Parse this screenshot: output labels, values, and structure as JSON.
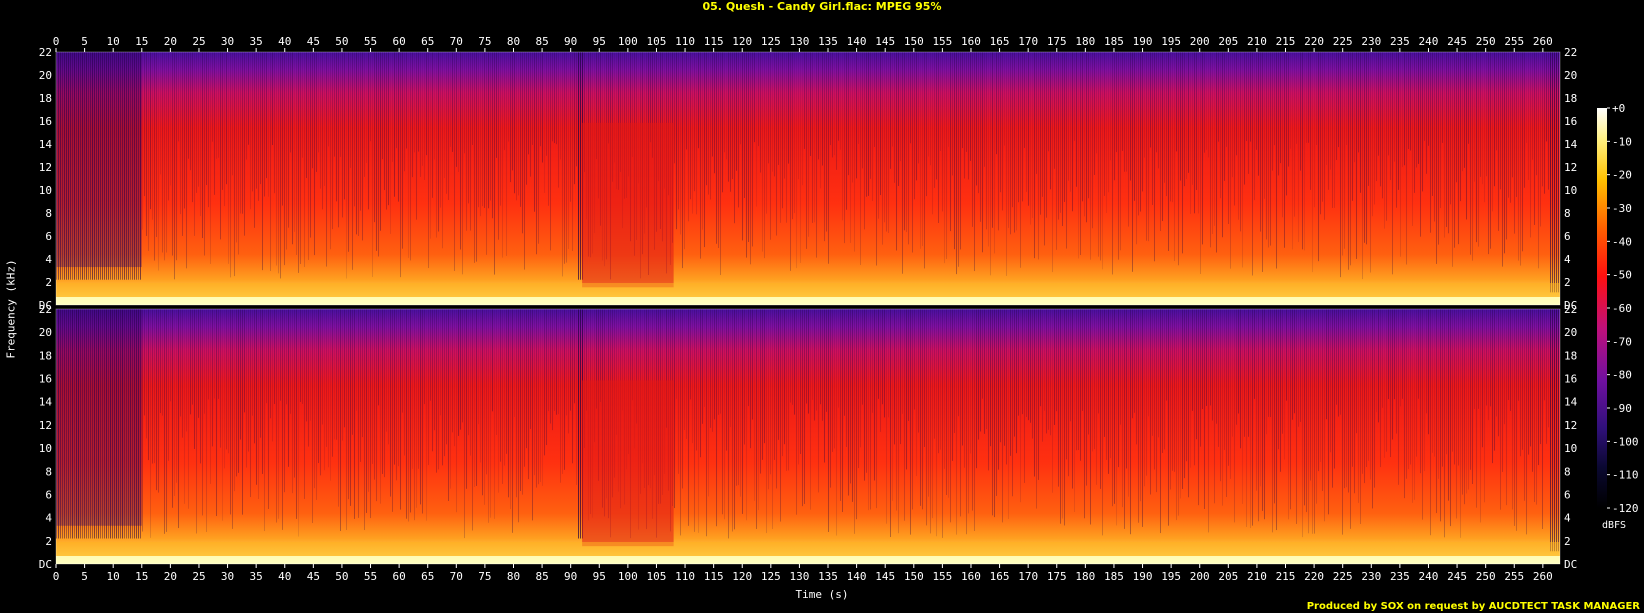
{
  "title": "05. Quesh - Candy Girl.flac: MPEG 95%",
  "credit": "Produced by SOX on request by AUCDTECT TASK MANAGER",
  "colors": {
    "title": "#ffff00",
    "credit": "#ffff00",
    "axis_text": "#ffffff",
    "background": "#000000",
    "colormap": [
      "#000000",
      "#1a0a4a",
      "#5a1090",
      "#c01040",
      "#ff2000",
      "#ff8000",
      "#ffd000",
      "#ffffff"
    ]
  },
  "chart_data": {
    "type": "heatmap",
    "title": "05. Quesh - Candy Girl.flac: MPEG 95%",
    "xlabel": "Time (s)",
    "ylabel": "Frequency (kHz)",
    "xlim": [
      0,
      263
    ],
    "ylim": [
      0,
      22
    ],
    "x_ticks": [
      0,
      5,
      10,
      15,
      20,
      25,
      30,
      35,
      40,
      45,
      50,
      55,
      60,
      65,
      70,
      75,
      80,
      85,
      90,
      95,
      100,
      105,
      110,
      115,
      120,
      125,
      130,
      135,
      140,
      145,
      150,
      155,
      160,
      165,
      170,
      175,
      180,
      185,
      190,
      195,
      200,
      205,
      210,
      215,
      220,
      225,
      230,
      235,
      240,
      245,
      250,
      255,
      260
    ],
    "y_tick_labels": [
      "DC",
      "2",
      "4",
      "6",
      "8",
      "10",
      "12",
      "14",
      "16",
      "18",
      "20",
      "22"
    ],
    "channels": 2,
    "colorbar": {
      "unit": "dBFS",
      "ticks": [
        "+0",
        "-10",
        "-20",
        "-30",
        "-40",
        "-50",
        "-60",
        "-70",
        "-80",
        "-90",
        "-100",
        "-110",
        "-120"
      ],
      "range": [
        -120,
        0
      ]
    },
    "sections": [
      {
        "start": 0,
        "end": 15,
        "level": "quiet intro"
      },
      {
        "start": 15,
        "end": 91,
        "level": "loud"
      },
      {
        "start": 91,
        "end": 108,
        "level": "breakdown"
      },
      {
        "start": 108,
        "end": 262,
        "level": "loud"
      }
    ]
  }
}
